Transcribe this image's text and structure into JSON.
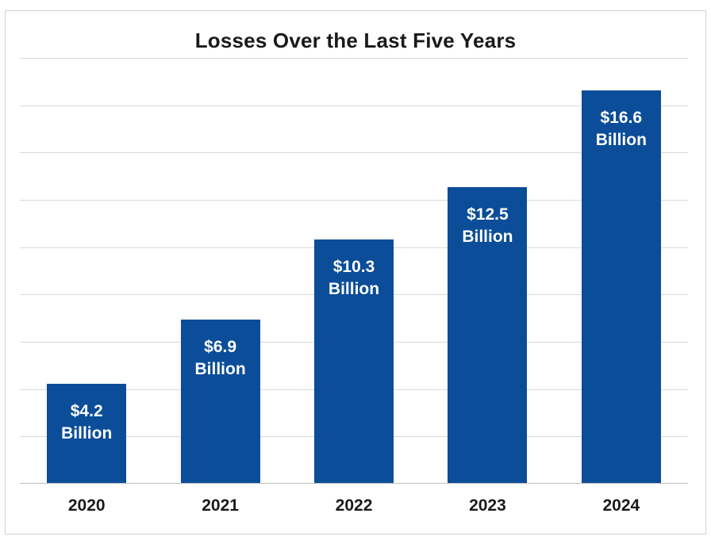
{
  "chart_data": {
    "type": "bar",
    "title": "Losses Over the Last Five Years",
    "categories": [
      "2020",
      "2021",
      "2022",
      "2023",
      "2024"
    ],
    "values": [
      4.2,
      6.9,
      10.3,
      12.5,
      16.6
    ],
    "bar_labels": [
      [
        "$4.2",
        "Billion"
      ],
      [
        "$6.9",
        "Billion"
      ],
      [
        "$10.3",
        "Billion"
      ],
      [
        "$12.5",
        "Billion"
      ],
      [
        "$16.6",
        "Billion"
      ]
    ],
    "unit": "USD billions",
    "xlabel": "",
    "ylabel": "",
    "ylim": [
      0,
      18
    ],
    "gridline_interval": 2,
    "grid": true,
    "legend": false,
    "bar_color": "#0B4D98",
    "bar_label_color": "#FFFFFF",
    "gridline_color": "#D9D9D9",
    "axis_line_color": "#BFBFBF",
    "frame_border_color": "#D2D2D2",
    "title_color": "#1A1A1A",
    "tick_label_color": "#1A1A1A"
  }
}
